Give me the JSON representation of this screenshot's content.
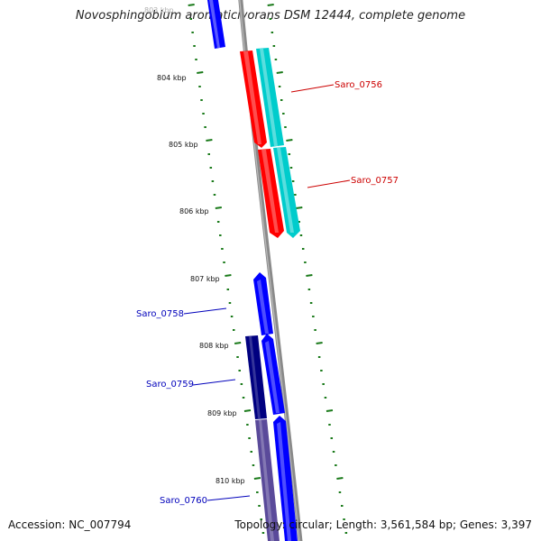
{
  "title": "Novosphingobium aromaticivorans DSM 12444, complete genome",
  "footer": {
    "accession": "Accession: NC_007794",
    "topology": "Topology: circular; Length: 3,561,584 bp; Genes: 3,397"
  },
  "kbp_labels": [
    "803 kbp",
    "804 kbp",
    "805 kbp",
    "806 kbp",
    "807 kbp",
    "808 kbp",
    "809 kbp",
    "810 kbp"
  ],
  "genes": [
    {
      "name": "Saro_0756",
      "color": "#cc0000"
    },
    {
      "name": "Saro_0757",
      "color": "#cc0000"
    },
    {
      "name": "Saro_0758",
      "color": "#0000bb"
    },
    {
      "name": "Saro_0759",
      "color": "#0000bb"
    },
    {
      "name": "Saro_0760",
      "color": "#0000bb"
    }
  ],
  "colors": {
    "forward_cds": "#ff0000",
    "forward_feature": "#00cccc",
    "reverse_cds": "#0000ff",
    "reverse_dark": "#000080",
    "reverse_muted": "#5a4a9a",
    "backbone": "#888888",
    "tick": "#1a7a1a"
  }
}
